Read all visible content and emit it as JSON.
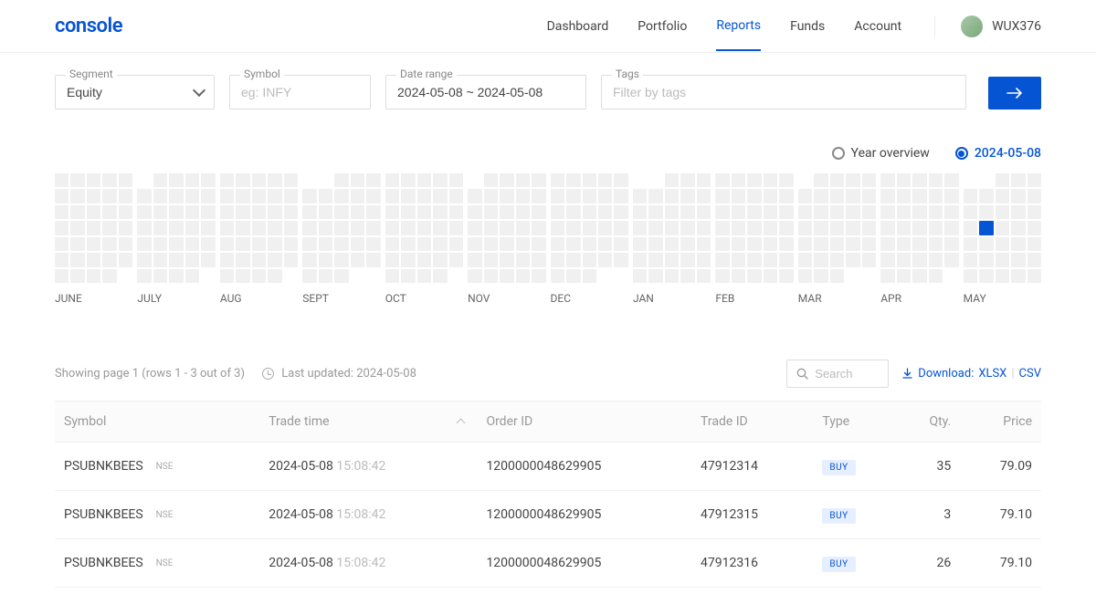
{
  "logo": "console",
  "nav": {
    "items": [
      "Dashboard",
      "Portfolio",
      "Reports",
      "Funds",
      "Account"
    ],
    "active_index": 2
  },
  "user": {
    "id": "WUX376"
  },
  "filters": {
    "segment": {
      "label": "Segment",
      "value": "Equity"
    },
    "symbol": {
      "label": "Symbol",
      "placeholder": "eg: INFY"
    },
    "daterange": {
      "label": "Date range",
      "value": "2024-05-08 ~ 2024-05-08"
    },
    "tags": {
      "label": "Tags",
      "placeholder": "Filter by tags"
    }
  },
  "view_toggle": {
    "year_label": "Year overview",
    "date_label": "2024-05-08",
    "active": "date"
  },
  "heatmap": {
    "months": [
      "JUNE",
      "JULY",
      "AUG",
      "SEPT",
      "OCT",
      "NOV",
      "DEC",
      "JAN",
      "FEB",
      "MAR",
      "APR",
      "MAY"
    ],
    "active_month_index": 11,
    "active_cell": {
      "row": 3,
      "col": 1
    },
    "cell_color_inactive": "#f0f0f0",
    "cell_color_active": "#0554d4",
    "top_empty_pattern": [
      [
        1,
        1,
        1,
        1,
        1
      ],
      [
        0,
        1,
        1,
        1,
        1
      ],
      [
        1,
        1,
        1,
        1,
        1
      ],
      [
        0,
        0,
        1,
        1,
        1
      ],
      [
        1,
        1,
        1,
        1,
        1
      ],
      [
        0,
        1,
        1,
        1,
        1
      ],
      [
        1,
        1,
        1,
        1,
        1
      ],
      [
        0,
        0,
        1,
        1,
        1
      ],
      [
        1,
        1,
        1,
        1,
        1
      ],
      [
        0,
        1,
        1,
        1,
        1
      ],
      [
        1,
        1,
        1,
        1,
        1
      ],
      [
        0,
        0,
        1,
        1,
        1
      ]
    ],
    "bottom_fill_pattern": [
      4,
      4,
      4,
      3,
      4,
      5,
      3,
      5,
      5,
      3,
      4,
      5
    ]
  },
  "table_meta": {
    "showing": "Showing page 1 (rows 1 - 3 out of 3)",
    "last_updated_label": "Last updated: ",
    "last_updated_value": "2024-05-08",
    "search_placeholder": "Search",
    "download_label": "Download:",
    "download_xlsx": "XLSX",
    "download_csv": "CSV"
  },
  "table": {
    "columns": [
      "Symbol",
      "Trade time",
      "Order ID",
      "Trade ID",
      "Type",
      "Qty.",
      "Price"
    ],
    "sort_column": "Trade time",
    "rows": [
      {
        "symbol": "PSUBNKBEES",
        "exchange": "NSE",
        "date": "2024-05-08",
        "time": "15:08:42",
        "order_id": "1200000048629905",
        "trade_id": "47912314",
        "type": "BUY",
        "qty": "35",
        "price": "79.09"
      },
      {
        "symbol": "PSUBNKBEES",
        "exchange": "NSE",
        "date": "2024-05-08",
        "time": "15:08:42",
        "order_id": "1200000048629905",
        "trade_id": "47912315",
        "type": "BUY",
        "qty": "3",
        "price": "79.10"
      },
      {
        "symbol": "PSUBNKBEES",
        "exchange": "NSE",
        "date": "2024-05-08",
        "time": "15:08:42",
        "order_id": "1200000048629905",
        "trade_id": "47912316",
        "type": "BUY",
        "qty": "26",
        "price": "79.10"
      }
    ]
  },
  "colors": {
    "primary": "#0554d4",
    "buy_badge_bg": "#e6efff"
  }
}
